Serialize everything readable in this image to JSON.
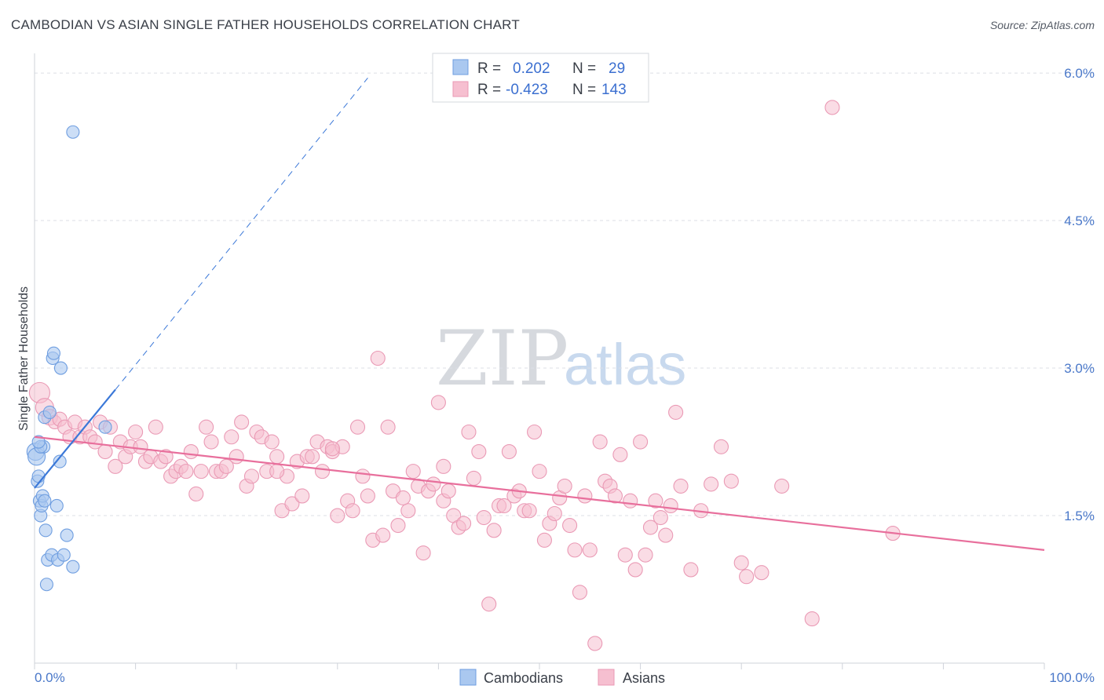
{
  "title": "CAMBODIAN VS ASIAN SINGLE FATHER HOUSEHOLDS CORRELATION CHART",
  "source": "Source: ZipAtlas.com",
  "watermark": {
    "zip": "ZIP",
    "atlas": "atlas"
  },
  "legend": {
    "row1": {
      "r_label": "R =",
      "r_value": "0.202",
      "n_label": "N =",
      "n_value": "29"
    },
    "row2": {
      "r_label": "R =",
      "r_value": "-0.423",
      "n_label": "N =",
      "n_value": "143"
    }
  },
  "bottom_legend": [
    "Cambodians",
    "Asians"
  ],
  "colors": {
    "cambodian_fill": "#aac8f0",
    "cambodian_stroke": "#6f9ee0",
    "cambodian_line": "#3b78d8",
    "asian_fill": "#f6bfd0",
    "asian_stroke": "#ea9ab5",
    "asian_line": "#e86f9c",
    "grid": "#dcdfe5",
    "axis_text": "#4a78c9"
  },
  "chart_data": {
    "type": "scatter",
    "title": "CAMBODIAN VS ASIAN SINGLE FATHER HOUSEHOLDS CORRELATION CHART",
    "xlabel": "",
    "ylabel": "Single Father Households",
    "xlim": [
      0,
      100
    ],
    "ylim": [
      0,
      6.2
    ],
    "x_tick_labels": [
      "0.0%",
      "100.0%"
    ],
    "y_ticks": [
      1.5,
      3.0,
      4.5,
      6.0
    ],
    "y_tick_labels": [
      "1.5%",
      "3.0%",
      "4.5%",
      "6.0%"
    ],
    "series": [
      {
        "name": "Cambodians",
        "r": 0.202,
        "n": 29,
        "points": [
          [
            0.1,
            2.15
          ],
          [
            0.2,
            2.1
          ],
          [
            0.3,
            1.85
          ],
          [
            0.4,
            1.9
          ],
          [
            0.5,
            1.65
          ],
          [
            0.6,
            1.5
          ],
          [
            0.7,
            1.6
          ],
          [
            0.8,
            1.7
          ],
          [
            0.9,
            2.2
          ],
          [
            1.0,
            2.5
          ],
          [
            1.1,
            1.35
          ],
          [
            1.2,
            0.8
          ],
          [
            1.3,
            1.05
          ],
          [
            1.5,
            2.55
          ],
          [
            1.7,
            1.1
          ],
          [
            1.8,
            3.1
          ],
          [
            1.9,
            3.15
          ],
          [
            2.2,
            1.6
          ],
          [
            2.3,
            1.05
          ],
          [
            2.5,
            2.05
          ],
          [
            2.6,
            3.0
          ],
          [
            2.9,
            1.1
          ],
          [
            3.2,
            1.3
          ],
          [
            3.8,
            5.4
          ],
          [
            3.8,
            0.98
          ],
          [
            7.0,
            2.4
          ],
          [
            0.6,
            2.2
          ],
          [
            1.0,
            1.65
          ],
          [
            0.4,
            2.25
          ]
        ],
        "trend_solid": [
          [
            0,
            1.78
          ],
          [
            8,
            2.78
          ]
        ],
        "trend_dashed": [
          [
            8,
            2.78
          ],
          [
            33,
            5.95
          ]
        ]
      },
      {
        "name": "Asians",
        "r": -0.423,
        "n": 143,
        "points": [
          [
            0.5,
            2.75
          ],
          [
            1.0,
            2.6
          ],
          [
            1.5,
            2.5
          ],
          [
            2.0,
            2.45
          ],
          [
            2.5,
            2.48
          ],
          [
            3.0,
            2.4
          ],
          [
            3.5,
            2.3
          ],
          [
            4.0,
            2.45
          ],
          [
            4.5,
            2.3
          ],
          [
            5.0,
            2.4
          ],
          [
            5.5,
            2.3
          ],
          [
            6.0,
            2.25
          ],
          [
            6.5,
            2.45
          ],
          [
            7.0,
            2.15
          ],
          [
            7.5,
            2.4
          ],
          [
            8.0,
            2.0
          ],
          [
            8.5,
            2.25
          ],
          [
            9.0,
            2.1
          ],
          [
            9.5,
            2.2
          ],
          [
            10.0,
            2.35
          ],
          [
            10.5,
            2.2
          ],
          [
            11.0,
            2.05
          ],
          [
            11.5,
            2.1
          ],
          [
            12.0,
            2.4
          ],
          [
            12.5,
            2.05
          ],
          [
            13.0,
            2.1
          ],
          [
            13.5,
            1.9
          ],
          [
            14.0,
            1.95
          ],
          [
            14.5,
            2.0
          ],
          [
            15.0,
            1.95
          ],
          [
            15.5,
            2.15
          ],
          [
            16.0,
            1.72
          ],
          [
            16.5,
            1.95
          ],
          [
            17.0,
            2.4
          ],
          [
            17.5,
            2.25
          ],
          [
            18.0,
            1.95
          ],
          [
            18.5,
            1.95
          ],
          [
            19.0,
            2.0
          ],
          [
            19.5,
            2.3
          ],
          [
            20.0,
            2.1
          ],
          [
            20.5,
            2.45
          ],
          [
            21.0,
            1.8
          ],
          [
            21.5,
            1.9
          ],
          [
            22.0,
            2.35
          ],
          [
            22.5,
            2.3
          ],
          [
            23.0,
            1.95
          ],
          [
            23.5,
            2.25
          ],
          [
            24.0,
            2.1
          ],
          [
            24.5,
            1.55
          ],
          [
            25.0,
            1.9
          ],
          [
            25.5,
            1.62
          ],
          [
            26.0,
            2.05
          ],
          [
            26.5,
            1.7
          ],
          [
            27.0,
            2.1
          ],
          [
            27.5,
            2.1
          ],
          [
            28.0,
            2.25
          ],
          [
            28.5,
            1.95
          ],
          [
            29.0,
            2.2
          ],
          [
            29.5,
            2.15
          ],
          [
            30.0,
            1.5
          ],
          [
            30.5,
            2.2
          ],
          [
            31.0,
            1.65
          ],
          [
            31.5,
            1.55
          ],
          [
            32.0,
            2.4
          ],
          [
            32.5,
            1.9
          ],
          [
            33.0,
            1.7
          ],
          [
            33.5,
            1.25
          ],
          [
            34.0,
            3.1
          ],
          [
            34.5,
            1.3
          ],
          [
            35.0,
            2.4
          ],
          [
            35.5,
            1.75
          ],
          [
            36.0,
            1.4
          ],
          [
            36.5,
            1.68
          ],
          [
            37.0,
            1.55
          ],
          [
            37.5,
            1.95
          ],
          [
            38.0,
            1.8
          ],
          [
            38.5,
            1.12
          ],
          [
            39.0,
            1.75
          ],
          [
            39.5,
            1.82
          ],
          [
            40.0,
            2.65
          ],
          [
            40.5,
            1.65
          ],
          [
            41.0,
            1.75
          ],
          [
            41.5,
            1.5
          ],
          [
            42.0,
            1.38
          ],
          [
            42.5,
            1.42
          ],
          [
            43.0,
            2.35
          ],
          [
            43.5,
            1.88
          ],
          [
            44.0,
            2.15
          ],
          [
            44.5,
            1.48
          ],
          [
            45.0,
            0.6
          ],
          [
            45.5,
            1.35
          ],
          [
            46.0,
            1.6
          ],
          [
            46.5,
            1.6
          ],
          [
            47.0,
            2.15
          ],
          [
            47.5,
            1.7
          ],
          [
            48.0,
            1.75
          ],
          [
            48.5,
            1.55
          ],
          [
            49.0,
            1.55
          ],
          [
            49.5,
            2.35
          ],
          [
            50.0,
            1.95
          ],
          [
            50.5,
            1.25
          ],
          [
            51.0,
            1.42
          ],
          [
            51.5,
            1.52
          ],
          [
            52.0,
            1.68
          ],
          [
            52.5,
            1.8
          ],
          [
            53.0,
            1.4
          ],
          [
            53.5,
            1.15
          ],
          [
            54.0,
            0.72
          ],
          [
            54.5,
            1.7
          ],
          [
            55.0,
            1.15
          ],
          [
            55.5,
            0.2
          ],
          [
            56.0,
            2.25
          ],
          [
            56.5,
            1.85
          ],
          [
            57.0,
            1.8
          ],
          [
            57.5,
            1.7
          ],
          [
            58.0,
            2.12
          ],
          [
            58.5,
            1.1
          ],
          [
            59.0,
            1.65
          ],
          [
            59.5,
            0.95
          ],
          [
            60.0,
            2.25
          ],
          [
            60.5,
            1.1
          ],
          [
            61.0,
            1.38
          ],
          [
            61.5,
            1.65
          ],
          [
            62.0,
            1.48
          ],
          [
            62.5,
            1.3
          ],
          [
            63.0,
            1.6
          ],
          [
            63.5,
            2.55
          ],
          [
            64.0,
            1.8
          ],
          [
            65.0,
            0.95
          ],
          [
            66.0,
            1.55
          ],
          [
            67.0,
            1.82
          ],
          [
            68.0,
            2.2
          ],
          [
            69.0,
            1.85
          ],
          [
            70.0,
            1.02
          ],
          [
            70.5,
            0.88
          ],
          [
            72.0,
            0.92
          ],
          [
            74.0,
            1.8
          ],
          [
            77.0,
            0.45
          ],
          [
            79.0,
            5.65
          ],
          [
            85.0,
            1.32
          ],
          [
            29.5,
            2.18
          ],
          [
            24.0,
            1.95
          ],
          [
            40.5,
            2.0
          ]
        ],
        "trend_line": [
          [
            0,
            2.3
          ],
          [
            100,
            1.15
          ]
        ]
      }
    ]
  }
}
